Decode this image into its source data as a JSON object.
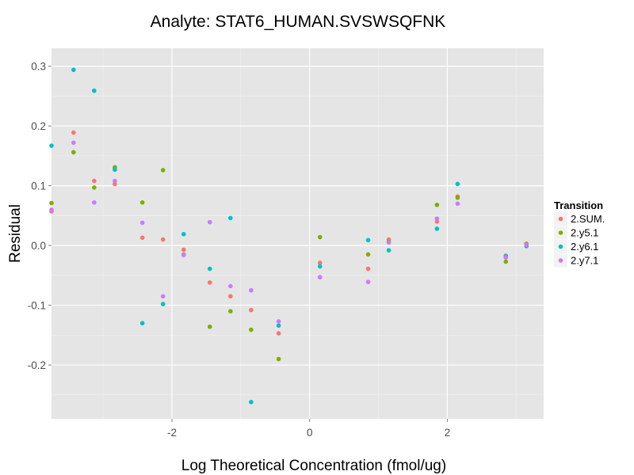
{
  "chart_data": {
    "type": "scatter",
    "title": "Analyte: STAT6_HUMAN.SVSWSQFNK",
    "xlabel": "Log Theoretical Concentration (fmol/ug)",
    "ylabel": "Residual",
    "xlim": [
      -3.75,
      3.4
    ],
    "ylim": [
      -0.29,
      0.33
    ],
    "x_ticks": [
      -2,
      0,
      2
    ],
    "y_ticks": [
      -0.2,
      -0.1,
      0.0,
      0.1,
      0.2,
      0.3
    ],
    "x_tick_labels": [
      "-2",
      "0",
      "2"
    ],
    "y_tick_labels": [
      "-0.2",
      "-0.1",
      "0.0",
      "0.1",
      "0.2",
      "0.3"
    ],
    "legend": {
      "title": "Transition",
      "position": "right"
    },
    "series": [
      {
        "name": "2.SUM.",
        "color": "#f8766d",
        "points": [
          [
            -3.75,
            0.057
          ],
          [
            -3.43,
            0.189
          ],
          [
            -3.13,
            0.108
          ],
          [
            -2.83,
            0.103
          ],
          [
            -2.43,
            0.013
          ],
          [
            -2.13,
            0.01
          ],
          [
            -1.83,
            -0.007
          ],
          [
            -1.45,
            -0.062
          ],
          [
            -1.15,
            -0.085
          ],
          [
            -0.85,
            -0.108
          ],
          [
            -0.45,
            -0.147
          ],
          [
            0.15,
            -0.029
          ],
          [
            0.85,
            -0.039
          ],
          [
            1.15,
            0.01
          ],
          [
            1.85,
            0.04
          ],
          [
            2.15,
            0.082
          ],
          [
            2.85,
            -0.017
          ],
          [
            3.15,
            0.003
          ]
        ]
      },
      {
        "name": "2.y5.1",
        "color": "#7cae00",
        "points": [
          [
            -3.75,
            0.071
          ],
          [
            -3.43,
            0.156
          ],
          [
            -3.13,
            0.097
          ],
          [
            -2.83,
            0.131
          ],
          [
            -2.43,
            0.072
          ],
          [
            -2.13,
            0.126
          ],
          [
            -1.83,
            -0.015
          ],
          [
            -1.45,
            -0.136
          ],
          [
            -1.15,
            -0.11
          ],
          [
            -0.85,
            -0.141
          ],
          [
            -0.45,
            -0.19
          ],
          [
            0.15,
            0.014
          ],
          [
            0.85,
            -0.015
          ],
          [
            1.15,
            0.006
          ],
          [
            1.85,
            0.068
          ],
          [
            2.15,
            0.08
          ],
          [
            2.85,
            -0.027
          ],
          [
            3.15,
            0.002
          ]
        ]
      },
      {
        "name": "2.y6.1",
        "color": "#00bfc4",
        "points": [
          [
            -3.75,
            0.167
          ],
          [
            -3.43,
            0.294
          ],
          [
            -3.13,
            0.259
          ],
          [
            -2.83,
            0.127
          ],
          [
            -2.43,
            -0.13
          ],
          [
            -2.13,
            -0.098
          ],
          [
            -1.83,
            0.019
          ],
          [
            -1.45,
            -0.039
          ],
          [
            -1.15,
            0.046
          ],
          [
            -0.85,
            -0.262
          ],
          [
            -0.45,
            -0.134
          ],
          [
            0.15,
            -0.035
          ],
          [
            0.85,
            0.009
          ],
          [
            1.15,
            -0.008
          ],
          [
            1.85,
            0.028
          ],
          [
            2.15,
            0.103
          ],
          [
            2.85,
            -0.018
          ],
          [
            3.15,
            -0.001
          ]
        ]
      },
      {
        "name": "2.y7.1",
        "color": "#c77cff",
        "points": [
          [
            -3.75,
            0.06
          ],
          [
            -3.43,
            0.172
          ],
          [
            -3.13,
            0.072
          ],
          [
            -2.83,
            0.108
          ],
          [
            -2.43,
            0.038
          ],
          [
            -2.13,
            -0.085
          ],
          [
            -1.83,
            -0.016
          ],
          [
            -1.45,
            0.039
          ],
          [
            -1.15,
            -0.068
          ],
          [
            -0.85,
            -0.075
          ],
          [
            -0.45,
            -0.127
          ],
          [
            0.15,
            -0.053
          ],
          [
            0.85,
            -0.061
          ],
          [
            1.15,
            0.005
          ],
          [
            1.85,
            0.045
          ],
          [
            2.15,
            0.07
          ],
          [
            2.85,
            -0.02
          ],
          [
            3.15,
            0.001
          ]
        ]
      }
    ]
  }
}
